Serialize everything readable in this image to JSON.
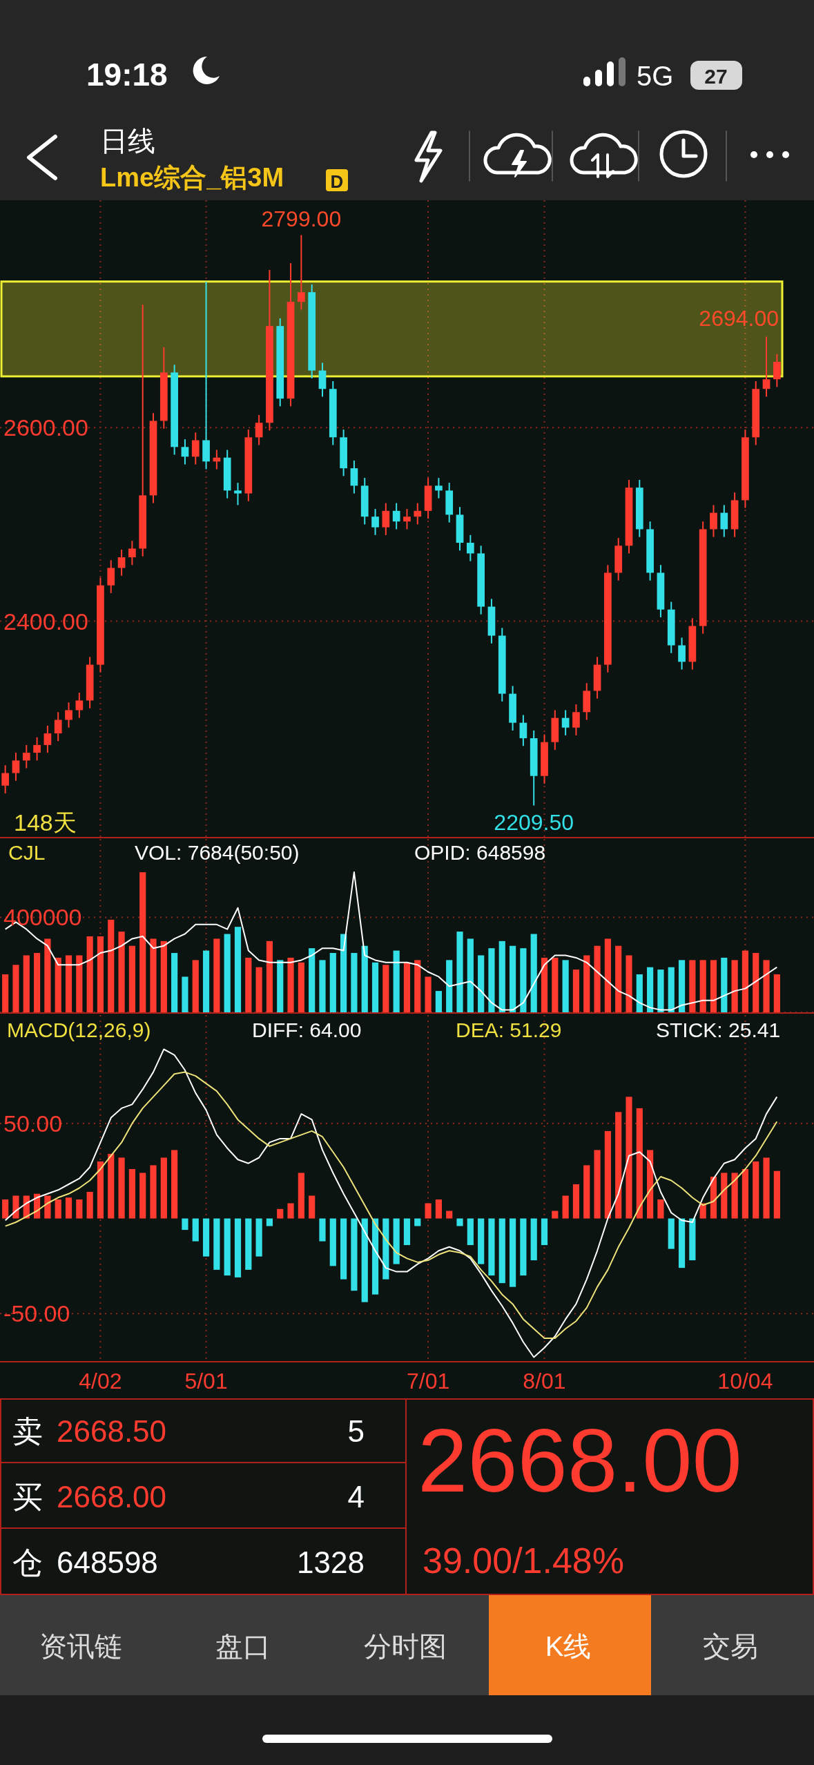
{
  "chart_data": [
    {
      "type": "candlestick",
      "title": "日线",
      "subtitle": "Lme综合_铝3M",
      "categories": [
        null,
        null,
        null,
        null,
        null,
        null,
        null,
        null,
        null,
        null,
        null,
        null,
        null,
        null,
        null,
        null,
        null,
        null,
        null,
        null,
        null,
        null,
        null,
        null,
        null,
        null,
        null,
        null,
        null,
        null,
        null,
        null,
        null,
        null,
        null,
        null,
        null,
        null,
        null,
        null,
        null,
        null,
        null,
        null,
        null,
        null,
        null,
        null,
        null,
        null,
        null,
        null,
        null,
        null,
        null,
        null,
        null,
        null,
        null,
        null,
        null,
        null,
        null,
        null,
        null,
        null,
        null,
        null,
        null,
        null,
        null,
        null,
        null,
        null
      ],
      "ohlc": [
        [
          2230,
          2251,
          2222,
          2243
        ],
        [
          2243,
          2264,
          2235,
          2256
        ],
        [
          2256,
          2272,
          2248,
          2264
        ],
        [
          2264,
          2280,
          2256,
          2272
        ],
        [
          2272,
          2292,
          2264,
          2284
        ],
        [
          2284,
          2306,
          2276,
          2298
        ],
        [
          2298,
          2316,
          2290,
          2308
        ],
        [
          2308,
          2326,
          2300,
          2318
        ],
        [
          2318,
          2363,
          2310,
          2355
        ],
        [
          2355,
          2445,
          2347,
          2437
        ],
        [
          2437,
          2463,
          2429,
          2455
        ],
        [
          2455,
          2474,
          2447,
          2466
        ],
        [
          2466,
          2483,
          2458,
          2475
        ],
        [
          2475,
          2727,
          2467,
          2530
        ],
        [
          2530,
          2615,
          2522,
          2607
        ],
        [
          2607,
          2683,
          2599,
          2657
        ],
        [
          2657,
          2665,
          2572,
          2580
        ],
        [
          2580,
          2588,
          2562,
          2570
        ],
        [
          2570,
          2595,
          2562,
          2587
        ],
        [
          2587,
          2751,
          2557,
          2565
        ],
        [
          2565,
          2577,
          2557,
          2569
        ],
        [
          2569,
          2577,
          2527,
          2535
        ],
        [
          2535,
          2543,
          2520,
          2532
        ],
        [
          2532,
          2598,
          2524,
          2590
        ],
        [
          2590,
          2613,
          2582,
          2605
        ],
        [
          2605,
          2763,
          2597,
          2705
        ],
        [
          2705,
          2713,
          2622,
          2630
        ],
        [
          2630,
          2770,
          2622,
          2730
        ],
        [
          2730,
          2799,
          2722,
          2740
        ],
        [
          2740,
          2748,
          2651,
          2659
        ],
        [
          2659,
          2667,
          2632,
          2640
        ],
        [
          2640,
          2648,
          2582,
          2590
        ],
        [
          2590,
          2598,
          2550,
          2558
        ],
        [
          2558,
          2566,
          2532,
          2540
        ],
        [
          2540,
          2548,
          2500,
          2508
        ],
        [
          2508,
          2516,
          2489,
          2497
        ],
        [
          2497,
          2522,
          2489,
          2514
        ],
        [
          2514,
          2522,
          2495,
          2503
        ],
        [
          2503,
          2516,
          2495,
          2508
        ],
        [
          2508,
          2522,
          2500,
          2514
        ],
        [
          2514,
          2548,
          2506,
          2540
        ],
        [
          2540,
          2548,
          2527,
          2535
        ],
        [
          2535,
          2543,
          2502,
          2510
        ],
        [
          2510,
          2518,
          2473,
          2481
        ],
        [
          2481,
          2489,
          2462,
          2470
        ],
        [
          2470,
          2478,
          2407,
          2415
        ],
        [
          2415,
          2423,
          2377,
          2385
        ],
        [
          2385,
          2393,
          2317,
          2325
        ],
        [
          2325,
          2333,
          2287,
          2295
        ],
        [
          2295,
          2303,
          2271,
          2279
        ],
        [
          2279,
          2287,
          2209.5,
          2240
        ],
        [
          2240,
          2283,
          2232,
          2275
        ],
        [
          2275,
          2308,
          2267,
          2300
        ],
        [
          2300,
          2308,
          2282,
          2290
        ],
        [
          2290,
          2314,
          2282,
          2306
        ],
        [
          2306,
          2336,
          2298,
          2328
        ],
        [
          2328,
          2363,
          2320,
          2355
        ],
        [
          2355,
          2458,
          2347,
          2450
        ],
        [
          2450,
          2486,
          2442,
          2478
        ],
        [
          2478,
          2546,
          2470,
          2538
        ],
        [
          2538,
          2546,
          2487,
          2495
        ],
        [
          2495,
          2503,
          2442,
          2450
        ],
        [
          2450,
          2458,
          2404,
          2412
        ],
        [
          2412,
          2420,
          2367,
          2375
        ],
        [
          2375,
          2383,
          2350,
          2358
        ],
        [
          2358,
          2403,
          2350,
          2395
        ],
        [
          2395,
          2503,
          2387,
          2495
        ],
        [
          2495,
          2520,
          2487,
          2512
        ],
        [
          2512,
          2520,
          2487,
          2495
        ],
        [
          2495,
          2533,
          2487,
          2525
        ],
        [
          2525,
          2598,
          2517,
          2590
        ],
        [
          2590,
          2648,
          2582,
          2640
        ],
        [
          2640,
          2694,
          2632,
          2650
        ],
        [
          2650,
          2676,
          2642,
          2668
        ]
      ],
      "colors": [
        "#ff3b30",
        "#ff3b30",
        "#ff3b30",
        "#ff3b30",
        "#ff3b30",
        "#ff3b30",
        "#ff3b30",
        "#ff3b30",
        "#ff3b30",
        "#ff3b30",
        "#ff3b30",
        "#ff3b30",
        "#ff3b30",
        "#ff3b30",
        "#ff3b30",
        "#ff3b30",
        "#33e0e8",
        "#33e0e8",
        "#ff3b30",
        "#33e0e8",
        "#ff3b30",
        "#33e0e8",
        "#33e0e8",
        "#ff3b30",
        "#ff3b30",
        "#ff3b30",
        "#33e0e8",
        "#ff3b30",
        "#ff3b30",
        "#33e0e8",
        "#33e0e8",
        "#33e0e8",
        "#33e0e8",
        "#33e0e8",
        "#33e0e8",
        "#33e0e8",
        "#ff3b30",
        "#33e0e8",
        "#ff3b30",
        "#ff3b30",
        "#ff3b30",
        "#33e0e8",
        "#33e0e8",
        "#33e0e8",
        "#33e0e8",
        "#33e0e8",
        "#33e0e8",
        "#33e0e8",
        "#33e0e8",
        "#33e0e8",
        "#33e0e8",
        "#ff3b30",
        "#ff3b30",
        "#33e0e8",
        "#ff3b30",
        "#ff3b30",
        "#ff3b30",
        "#ff3b30",
        "#ff3b30",
        "#ff3b30",
        "#33e0e8",
        "#33e0e8",
        "#33e0e8",
        "#33e0e8",
        "#33e0e8",
        "#ff3b30",
        "#ff3b30",
        "#ff3b30",
        "#33e0e8",
        "#ff3b30",
        "#ff3b30",
        "#ff3b30",
        "#ff3b30",
        "#ff3b30"
      ],
      "ylim": [
        2177,
        2835
      ],
      "yticks": [
        {
          "value": 2400,
          "label": "2400.00"
        },
        {
          "value": 2600,
          "label": "2600.00"
        }
      ],
      "grid": true,
      "tick_labels": "y",
      "bands": [
        {
          "axis": "y",
          "from": 2653,
          "to": 2751,
          "color": "#f0f032"
        }
      ],
      "annotations": [
        {
          "text": "2799.00",
          "y": 2799
        },
        {
          "text": "2209.50",
          "y": 2209.5
        },
        "2694.00",
        "148天"
      ]
    },
    {
      "type": "bar",
      "title": "CJL",
      "categories": [
        null,
        null,
        null,
        null,
        null,
        null,
        null,
        null,
        null,
        null,
        null,
        null,
        null,
        null,
        null,
        null,
        null,
        null,
        null,
        null,
        null,
        null,
        null,
        null,
        null,
        null,
        null,
        null,
        null,
        null,
        null,
        null,
        null,
        null,
        null,
        null,
        null,
        null,
        null,
        null,
        null,
        null,
        null,
        null,
        null,
        null,
        null,
        null,
        null,
        null,
        null,
        null,
        null,
        null,
        null,
        null,
        null,
        null,
        null,
        null,
        null,
        null,
        null,
        null,
        null,
        null,
        null,
        null,
        null,
        null,
        null,
        null,
        null,
        null
      ],
      "series": [
        {
          "type": "bar",
          "colors": [
            "#ff3b30",
            "#ff3b30",
            "#ff3b30",
            "#ff3b30",
            "#ff3b30",
            "#ff3b30",
            "#ff3b30",
            "#ff3b30",
            "#ff3b30",
            "#ff3b30",
            "#ff3b30",
            "#ff3b30",
            "#ff3b30",
            "#ff3b30",
            "#ff3b30",
            "#ff3b30",
            "#33e0e8",
            "#33e0e8",
            "#ff3b30",
            "#33e0e8",
            "#ff3b30",
            "#33e0e8",
            "#33e0e8",
            "#ff3b30",
            "#ff3b30",
            "#ff3b30",
            "#33e0e8",
            "#ff3b30",
            "#ff3b30",
            "#33e0e8",
            "#33e0e8",
            "#33e0e8",
            "#33e0e8",
            "#33e0e8",
            "#33e0e8",
            "#33e0e8",
            "#ff3b30",
            "#33e0e8",
            "#ff3b30",
            "#ff3b30",
            "#ff3b30",
            "#33e0e8",
            "#33e0e8",
            "#33e0e8",
            "#33e0e8",
            "#33e0e8",
            "#33e0e8",
            "#33e0e8",
            "#33e0e8",
            "#33e0e8",
            "#33e0e8",
            "#ff3b30",
            "#ff3b30",
            "#33e0e8",
            "#ff3b30",
            "#ff3b30",
            "#ff3b30",
            "#ff3b30",
            "#ff3b30",
            "#ff3b30",
            "#33e0e8",
            "#33e0e8",
            "#33e0e8",
            "#33e0e8",
            "#33e0e8",
            "#ff3b30",
            "#ff3b30",
            "#ff3b30",
            "#33e0e8",
            "#ff3b30",
            "#ff3b30",
            "#ff3b30",
            "#ff3b30",
            "#ff3b30"
          ],
          "values": [
            160000,
            200000,
            240000,
            250000,
            310000,
            230000,
            240000,
            240000,
            320000,
            320000,
            390000,
            340000,
            280000,
            590000,
            310000,
            300000,
            250000,
            150000,
            220000,
            260000,
            310000,
            330000,
            360000,
            230000,
            190000,
            300000,
            220000,
            230000,
            210000,
            270000,
            220000,
            250000,
            330000,
            250000,
            280000,
            210000,
            200000,
            260000,
            210000,
            220000,
            150000,
            90000,
            220000,
            340000,
            310000,
            240000,
            270000,
            300000,
            280000,
            270000,
            330000,
            230000,
            230000,
            220000,
            180000,
            240000,
            280000,
            310000,
            280000,
            240000,
            160000,
            190000,
            180000,
            190000,
            220000,
            220000,
            220000,
            220000,
            230000,
            220000,
            260000,
            250000,
            220000,
            160000
          ]
        },
        {
          "type": "line",
          "color": "#ffffff",
          "values": [
            350000,
            380000,
            350000,
            310000,
            280000,
            200000,
            200000,
            200000,
            220000,
            250000,
            260000,
            280000,
            310000,
            320000,
            270000,
            280000,
            310000,
            330000,
            370000,
            370000,
            370000,
            350000,
            440000,
            260000,
            220000,
            210000,
            210000,
            210000,
            220000,
            240000,
            270000,
            270000,
            260000,
            590000,
            240000,
            220000,
            210000,
            210000,
            210000,
            200000,
            170000,
            150000,
            110000,
            120000,
            130000,
            90000,
            40000,
            10000,
            10000,
            40000,
            120000,
            200000,
            240000,
            240000,
            230000,
            210000,
            170000,
            130000,
            90000,
            70000,
            40000,
            20000,
            10000,
            10000,
            30000,
            40000,
            50000,
            50000,
            70000,
            90000,
            100000,
            130000,
            160000,
            190000
          ]
        }
      ],
      "ylim": [
        0,
        730000
      ],
      "yticks": [
        {
          "value": 0,
          "label": null
        },
        {
          "value": 400000,
          "label": "400000"
        }
      ],
      "grid": true,
      "tick_labels": "y",
      "annotations": [
        "VOL: 7684(50:50)",
        "OPID: 648598"
      ]
    },
    {
      "type": "bar",
      "title": "MACD(12,26,9)",
      "categories": [
        null,
        null,
        null,
        null,
        null,
        null,
        null,
        null,
        null,
        "4/02",
        null,
        null,
        null,
        null,
        null,
        null,
        null,
        null,
        null,
        "5/01",
        null,
        null,
        null,
        null,
        null,
        null,
        null,
        null,
        null,
        null,
        null,
        null,
        null,
        null,
        null,
        null,
        null,
        null,
        null,
        null,
        "7/01",
        null,
        null,
        null,
        null,
        null,
        null,
        null,
        null,
        null,
        null,
        "8/01",
        null,
        null,
        null,
        null,
        null,
        null,
        null,
        null,
        null,
        null,
        null,
        null,
        null,
        null,
        null,
        null,
        null,
        null,
        "10/04",
        null,
        null,
        null
      ],
      "series": [
        {
          "type": "bar",
          "colors": [
            "#ff3b30",
            "#ff3b30",
            "#ff3b30",
            "#ff3b30",
            "#ff3b30",
            "#ff3b30",
            "#ff3b30",
            "#ff3b30",
            "#ff3b30",
            "#ff3b30",
            "#ff3b30",
            "#ff3b30",
            "#ff3b30",
            "#ff3b30",
            "#ff3b30",
            "#ff3b30",
            "#ff3b30",
            "#33e0e8",
            "#33e0e8",
            "#33e0e8",
            "#33e0e8",
            "#33e0e8",
            "#33e0e8",
            "#33e0e8",
            "#33e0e8",
            "#33e0e8",
            "#ff3b30",
            "#ff3b30",
            "#ff3b30",
            "#ff3b30",
            "#33e0e8",
            "#33e0e8",
            "#33e0e8",
            "#33e0e8",
            "#33e0e8",
            "#33e0e8",
            "#33e0e8",
            "#33e0e8",
            "#33e0e8",
            "#33e0e8",
            "#ff3b30",
            "#ff3b30",
            "#ff3b30",
            "#33e0e8",
            "#33e0e8",
            "#33e0e8",
            "#33e0e8",
            "#33e0e8",
            "#33e0e8",
            "#33e0e8",
            "#33e0e8",
            "#33e0e8",
            "#ff3b30",
            "#ff3b30",
            "#ff3b30",
            "#ff3b30",
            "#ff3b30",
            "#ff3b30",
            "#ff3b30",
            "#ff3b30",
            "#ff3b30",
            "#ff3b30",
            "#ff3b30",
            "#33e0e8",
            "#33e0e8",
            "#33e0e8",
            "#ff3b30",
            "#ff3b30",
            "#ff3b30",
            "#ff3b30",
            "#ff3b30",
            "#ff3b30",
            "#ff3b30",
            "#ff3b30"
          ],
          "values": [
            10,
            12,
            12,
            13,
            12,
            10,
            11,
            10,
            14,
            30,
            34,
            32,
            26,
            24,
            28,
            32,
            36,
            -6,
            -12,
            -20,
            -27,
            -30,
            -31,
            -27,
            -20,
            -4,
            5,
            8,
            24,
            12,
            -12,
            -25,
            -32,
            -38,
            -44,
            -40,
            -32,
            -24,
            -14,
            -4,
            8,
            10,
            4,
            -4,
            -14,
            -24,
            -30,
            -34,
            -36,
            -30,
            -22,
            -14,
            4,
            12,
            18,
            28,
            36,
            46,
            56,
            64,
            58,
            36,
            10,
            -16,
            -26,
            -22,
            8,
            22,
            24,
            24,
            26,
            30,
            32,
            25
          ]
        },
        {
          "type": "line",
          "color": "#ffffff",
          "values": [
            -1,
            4,
            8,
            11,
            13,
            15,
            18,
            21,
            27,
            40,
            53,
            58,
            60,
            68,
            77,
            89,
            86,
            78,
            66,
            57,
            44,
            37,
            31,
            29,
            32,
            40,
            42,
            42,
            55,
            52,
            36,
            24,
            13,
            3,
            -7,
            -17,
            -26,
            -28,
            -28,
            -24,
            -21,
            -17,
            -15,
            -17,
            -21,
            -29,
            -38,
            -46,
            -55,
            -65,
            -73,
            -68,
            -62,
            -53,
            -45,
            -32,
            -17,
            0,
            13,
            33,
            35,
            30,
            14,
            3,
            -1,
            -2,
            11,
            21,
            29,
            31,
            37,
            42,
            55,
            64
          ]
        },
        {
          "type": "line",
          "color": "#eee37a",
          "values": [
            -4,
            -2,
            1,
            4,
            8,
            11,
            13,
            16,
            20,
            26,
            33,
            40,
            50,
            58,
            64,
            70,
            76,
            77,
            75,
            71,
            67,
            60,
            52,
            47,
            42,
            38,
            40,
            42,
            44,
            46,
            43,
            35,
            27,
            17,
            7,
            -3,
            -11,
            -18,
            -21,
            -23,
            -22,
            -19,
            -17,
            -18,
            -20,
            -27,
            -33,
            -40,
            -45,
            -53,
            -58,
            -63,
            -63,
            -58,
            -54,
            -47,
            -36,
            -27,
            -15,
            -5,
            6,
            15,
            22,
            20,
            16,
            11,
            7,
            9,
            15,
            20,
            26,
            33,
            42,
            51
          ]
        }
      ],
      "ylim": [
        -75,
        107
      ],
      "yticks": [
        {
          "value": -50,
          "label": "-50.00"
        },
        {
          "value": 50,
          "label": "50.00"
        }
      ],
      "grid": true,
      "annotations": [
        "DIFF: 64.00",
        "DEA: 51.29",
        "STICK: 25.41"
      ]
    },
    {
      "type": "other",
      "annotations": [
        "19:18",
        "5G",
        "27",
        "D",
        "卖",
        "2668.50",
        "5",
        "买",
        "2668.00",
        "4",
        "仓",
        "648598",
        "1328",
        "2668.00",
        "39.00/1.48%",
        "资讯链",
        "盘口",
        "分时图",
        "K线",
        "交易"
      ]
    }
  ]
}
